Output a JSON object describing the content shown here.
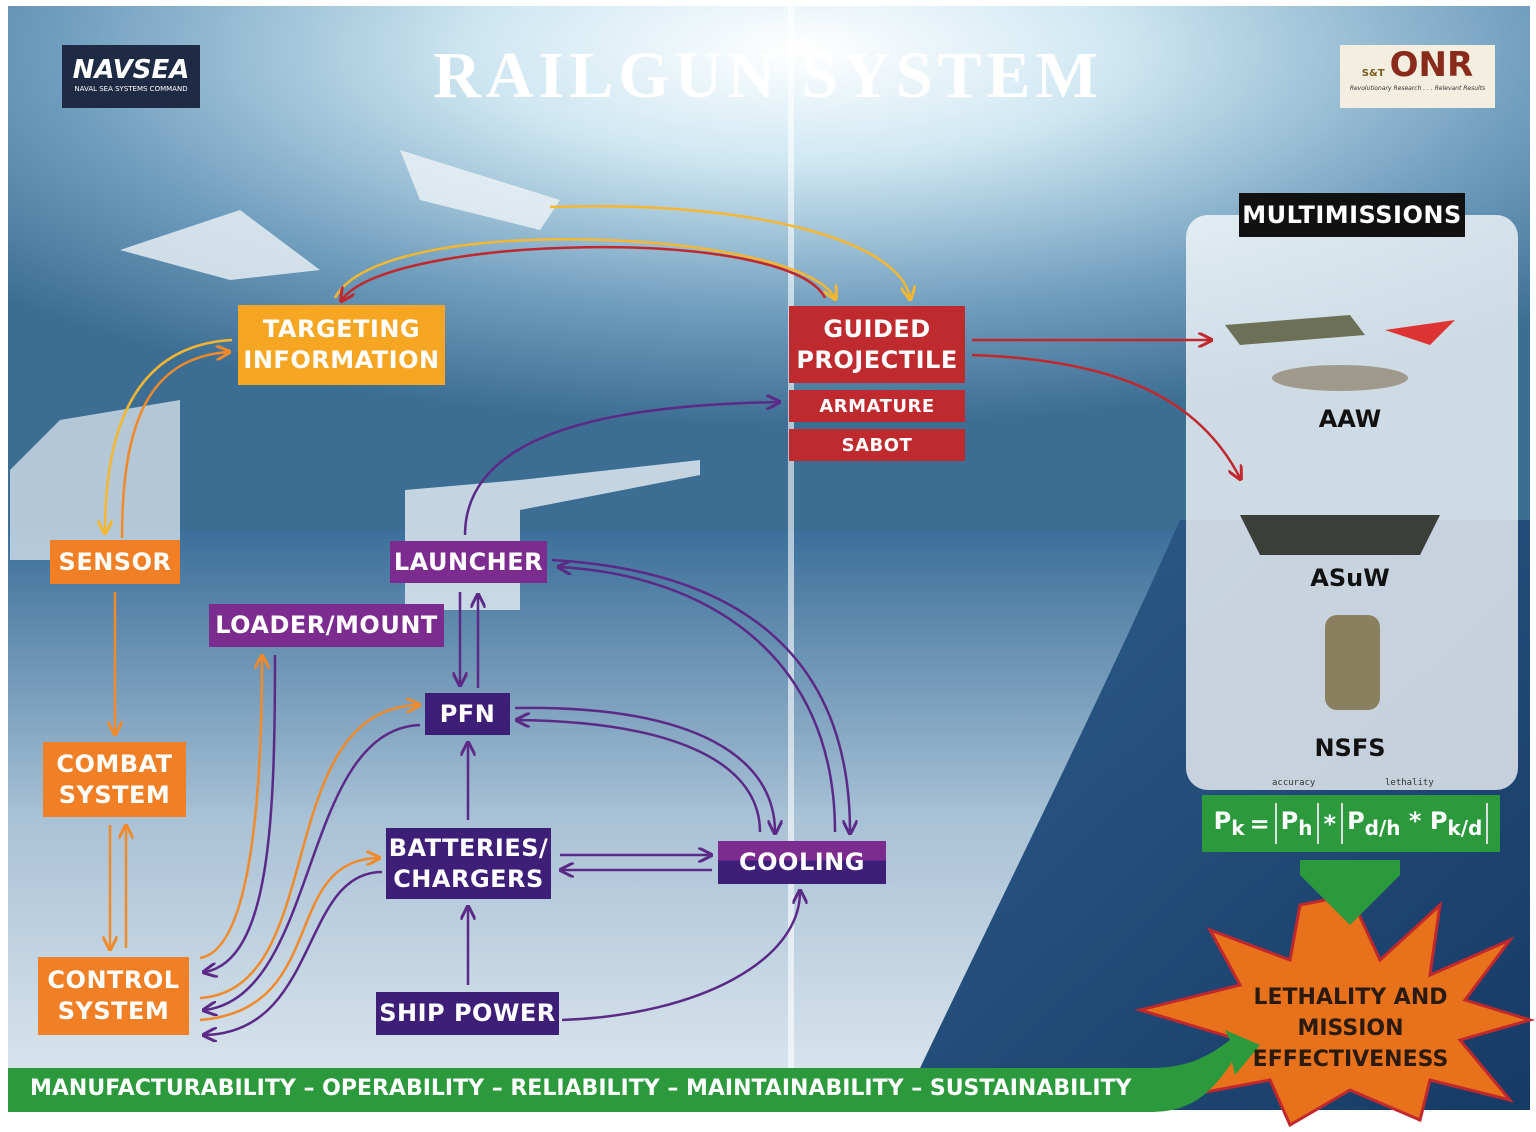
{
  "header": {
    "title": "RAILGUN SYSTEM",
    "left_logo": {
      "name": "NAVSEA",
      "subtitle": "NAVAL SEA SYSTEMS COMMAND"
    },
    "right_logo": {
      "name": "ONR",
      "badge": "S&T",
      "tagline": "Revolutionary Research . . . Relevant Results"
    }
  },
  "nodes": {
    "targeting": "TARGETING INFORMATION",
    "sensor": "SENSOR",
    "combat": "COMBAT SYSTEM",
    "control": "CONTROL SYSTEM",
    "launcher": "LAUNCHER",
    "loader": "LOADER/MOUNT",
    "pfn": "PFN",
    "batteries": "BATTERIES/ CHARGERS",
    "cooling": "COOLING",
    "ship_power": "SHIP POWER"
  },
  "projectile": {
    "label": "GUIDED PROJECTILE",
    "parts": [
      "ARMATURE",
      "SABOT"
    ]
  },
  "multimissions": {
    "title": "MULTIMISSIONS",
    "missions": [
      "AAW",
      "ASuW",
      "NSFS"
    ]
  },
  "formula": {
    "terms": [
      {
        "base": "P",
        "sub": "k"
      },
      {
        "base": "P",
        "sub": "h"
      },
      {
        "base": "P",
        "sub": "d/h"
      },
      {
        "base": "P",
        "sub": "k/d"
      }
    ],
    "operators": [
      "=",
      "*",
      "*"
    ],
    "annotations": [
      "accuracy",
      "lethality"
    ]
  },
  "outcome": "LETHALITY AND MISSION EFFECTIVENESS",
  "footer": "MANUFACTURABILITY – OPERABILITY – RELIABILITY – MAINTAINABILITY – SUSTAINABILITY"
}
